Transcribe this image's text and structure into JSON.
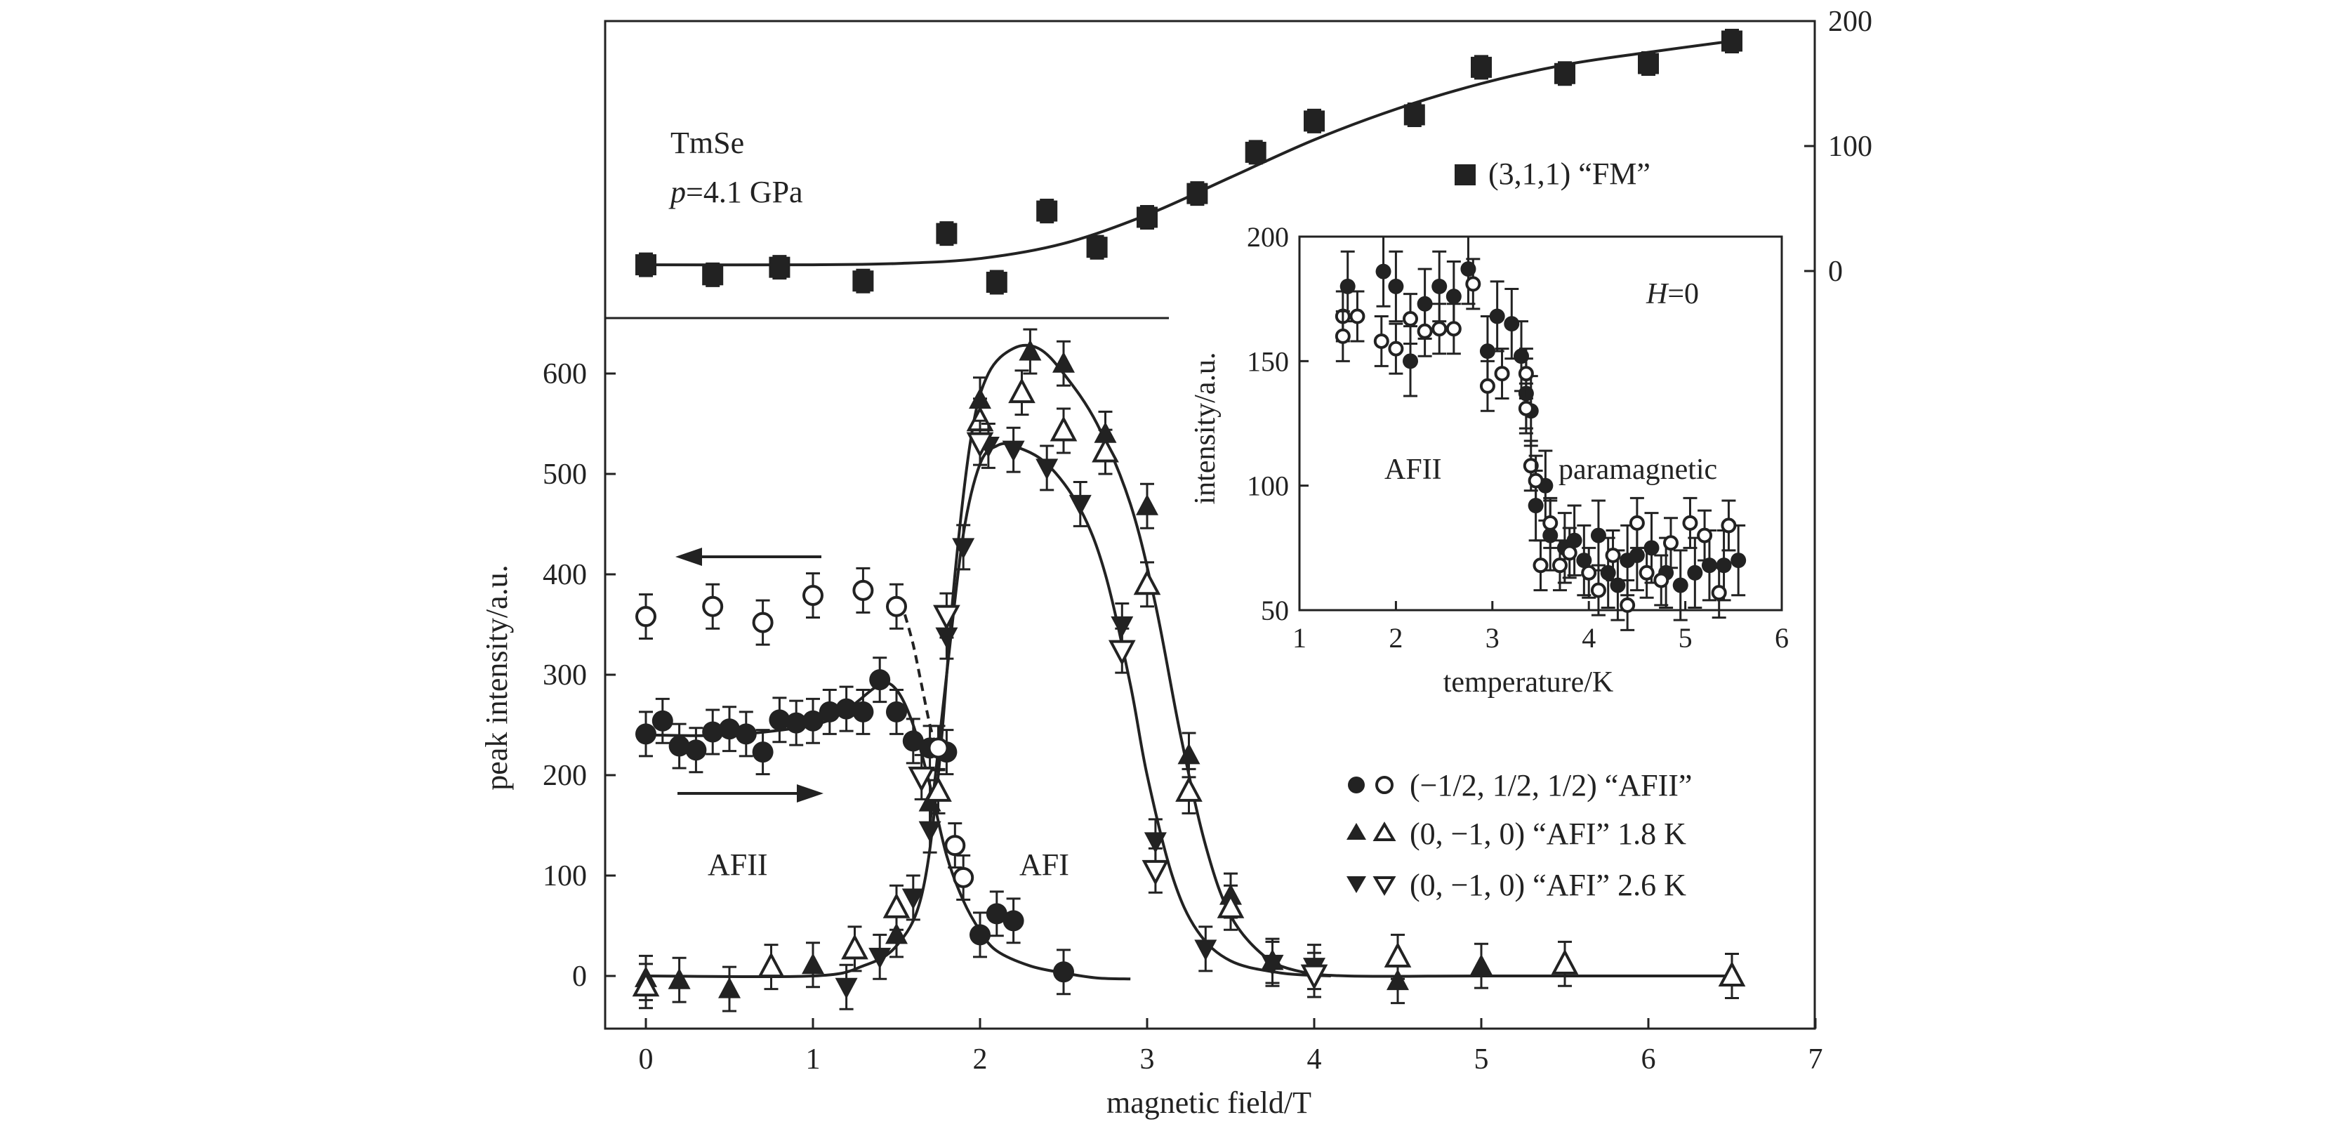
{
  "chart_data": {
    "type": "scatter",
    "main": {
      "xlabel": "magnetic field/T",
      "ylabel": "peak intensity/a.u.",
      "xlim": [
        0,
        7
      ],
      "x_ticks": [
        "0",
        "1",
        "2",
        "3",
        "4",
        "5",
        "6",
        "7"
      ],
      "ylim_left": [
        0,
        600
      ],
      "y_ticks_left": [
        "0",
        "100",
        "200",
        "300",
        "400",
        "500",
        "600"
      ],
      "ylim_right": [
        0,
        200
      ],
      "y_ticks_right": [
        "0",
        "100",
        "200"
      ],
      "annotations": {
        "sample": "TmSe",
        "pressure_p": "p",
        "pressure_rest": "=4.1 GPa",
        "phase_afii": "AFII",
        "phase_afi": "AFI"
      },
      "legend": {
        "fm": "(3,1,1) “FM”",
        "afii": "(−1/2, 1/2, 1/2) “AFII”",
        "afi_18": "(0, −1, 0) “AFI” 1.8 K",
        "afi_26": "(0, −1, 0) “AFI” 2.6 K"
      },
      "series": [
        {
          "name": "(3,1,1) FM",
          "axis": "right",
          "marker": "square",
          "filled": true,
          "error": 9,
          "x": [
            0,
            0.4,
            0.8,
            1.3,
            1.8,
            2.1,
            2.4,
            2.7,
            3.0,
            3.3,
            3.65,
            4.0,
            4.6,
            5.0,
            5.5,
            6.0,
            6.5
          ],
          "y": [
            5,
            -3,
            3,
            -8,
            30,
            -9,
            48,
            19,
            43,
            62,
            95,
            120,
            125,
            163,
            158,
            166,
            184
          ]
        },
        {
          "name": "AFII increasing field",
          "axis": "left",
          "marker": "circle",
          "filled": true,
          "error": 22,
          "x": [
            0,
            0.1,
            0.2,
            0.3,
            0.4,
            0.5,
            0.6,
            0.7,
            0.8,
            0.9,
            1.0,
            1.1,
            1.2,
            1.3,
            1.4,
            1.5,
            1.6,
            1.7,
            1.8,
            2.0,
            2.1,
            2.2,
            2.5
          ],
          "y": [
            241,
            254,
            229,
            225,
            243,
            246,
            241,
            223,
            255,
            252,
            254,
            263,
            266,
            263,
            295,
            263,
            234,
            227,
            223,
            41,
            62,
            55,
            4
          ]
        },
        {
          "name": "AFII decreasing field",
          "axis": "left",
          "marker": "circle",
          "filled": false,
          "error": 22,
          "x": [
            0,
            0.4,
            0.7,
            1.0,
            1.3,
            1.5,
            1.75,
            1.85,
            1.9
          ],
          "y": [
            358,
            368,
            352,
            379,
            384,
            368,
            227,
            130,
            98
          ]
        },
        {
          "name": "AFI 1.8 K filled",
          "axis": "left",
          "marker": "triangle-up",
          "filled": true,
          "error": 22,
          "x": [
            0,
            0.2,
            0.5,
            1.0,
            1.5,
            1.7,
            2.0,
            2.3,
            2.5,
            2.75,
            3.0,
            3.25,
            3.5,
            3.75,
            4.5,
            5.0
          ],
          "y": [
            -2,
            -4,
            -13,
            11,
            41,
            173,
            574,
            622,
            610,
            540,
            468,
            220,
            80,
            15,
            -5,
            10
          ]
        },
        {
          "name": "AFI 1.8 K open",
          "axis": "left",
          "marker": "triangle-up",
          "filled": false,
          "error": 22,
          "x": [
            0,
            0.75,
            1.25,
            1.5,
            1.75,
            2.0,
            2.25,
            2.5,
            2.75,
            3.0,
            3.25,
            3.5,
            4.5,
            5.5,
            6.5
          ],
          "y": [
            -10,
            9,
            27,
            68,
            184,
            553,
            581,
            543,
            522,
            390,
            184,
            68,
            19,
            12,
            0
          ]
        },
        {
          "name": "AFI 2.6 K filled",
          "axis": "left",
          "marker": "triangle-down",
          "filled": true,
          "error": 22,
          "x": [
            1.2,
            1.4,
            1.6,
            1.7,
            1.8,
            1.9,
            2.05,
            2.2,
            2.4,
            2.6,
            2.85,
            3.05,
            3.35,
            3.75,
            4.0
          ],
          "y": [
            -11,
            19,
            78,
            145,
            338,
            427,
            528,
            524,
            506,
            470,
            349,
            134,
            27,
            12,
            9
          ]
        },
        {
          "name": "AFI 2.6 K open",
          "axis": "left",
          "marker": "triangle-down",
          "filled": false,
          "error": 22,
          "x": [
            1.65,
            1.8,
            2.0,
            2.85,
            3.05,
            4.0
          ],
          "y": [
            198,
            359,
            531,
            324,
            105,
            1
          ]
        }
      ],
      "fit_curves": [
        {
          "name": "FM fit",
          "axis": "right",
          "dashed": false,
          "x": [
            0,
            1,
            1.5,
            2,
            2.5,
            3,
            3.5,
            4,
            4.5,
            5,
            5.5,
            6,
            6.5
          ],
          "y": [
            5,
            5,
            6,
            10,
            22,
            45,
            75,
            105,
            130,
            150,
            165,
            175,
            184
          ]
        },
        {
          "name": "AFII fit",
          "axis": "left",
          "dashed": false,
          "x": [
            0,
            0.5,
            1.0,
            1.2,
            1.4,
            1.5,
            1.6,
            1.7,
            1.8,
            1.9,
            2.0,
            2.1,
            2.3,
            2.5,
            2.7,
            2.9
          ],
          "y": [
            240,
            240,
            250,
            265,
            290,
            285,
            250,
            190,
            120,
            75,
            45,
            25,
            10,
            3,
            -2,
            -3
          ]
        },
        {
          "name": "AFII decreasing fit",
          "axis": "left",
          "dashed": true,
          "x": [
            1.55,
            1.6,
            1.65,
            1.7,
            1.75
          ],
          "y": [
            360,
            330,
            290,
            250,
            220
          ]
        },
        {
          "name": "AFI 1.8 K fit",
          "axis": "left",
          "dashed": false,
          "x": [
            0,
            1.0,
            1.3,
            1.5,
            1.65,
            1.75,
            1.85,
            1.95,
            2.05,
            2.2,
            2.35,
            2.5,
            2.7,
            2.9,
            3.05,
            3.2,
            3.35,
            3.5,
            3.7,
            3.9,
            4.2,
            5,
            6.5
          ],
          "y": [
            0,
            0,
            10,
            30,
            80,
            200,
            400,
            540,
            600,
            625,
            625,
            600,
            550,
            470,
            370,
            240,
            130,
            60,
            20,
            5,
            0,
            0,
            0
          ]
        },
        {
          "name": "AFI 2.6 K fit",
          "axis": "left",
          "dashed": false,
          "x": [
            1.7,
            1.8,
            1.9,
            2.0,
            2.1,
            2.2,
            2.4,
            2.6,
            2.75,
            2.9,
            3.0,
            3.15,
            3.3,
            3.5,
            3.8,
            4.1
          ],
          "y": [
            150,
            300,
            440,
            510,
            528,
            528,
            510,
            465,
            400,
            290,
            200,
            100,
            45,
            15,
            3,
            0
          ]
        }
      ]
    },
    "inset": {
      "xlabel": "temperature/K",
      "ylabel": "intensity/a.u.",
      "xlim": [
        1,
        6
      ],
      "x_ticks": [
        "1",
        "2",
        "3",
        "4",
        "5",
        "6"
      ],
      "ylim": [
        50,
        200
      ],
      "y_ticks": [
        "50",
        "100",
        "150",
        "200"
      ],
      "annotations": {
        "field_h": "H",
        "field_rest": "=0",
        "phase_afii": "AFII",
        "phase_para": "paramagnetic"
      },
      "series": [
        {
          "name": "filled",
          "marker": "circle",
          "filled": true,
          "error": 14,
          "x": [
            1.5,
            1.87,
            2.0,
            2.15,
            2.3,
            2.45,
            2.6,
            2.75,
            2.95,
            3.05,
            3.2,
            3.3,
            3.35,
            3.4,
            3.45,
            3.55,
            3.6,
            3.75,
            3.85,
            3.95,
            4.1,
            4.2,
            4.3,
            4.4,
            4.5,
            4.65,
            4.8,
            4.95,
            5.1,
            5.25,
            5.4,
            5.55
          ],
          "y": [
            180,
            186,
            180,
            150,
            173,
            180,
            176,
            187,
            154,
            168,
            165,
            152,
            137,
            130,
            92,
            100,
            80,
            75,
            78,
            70,
            80,
            65,
            60,
            70,
            72,
            75,
            65,
            60,
            65,
            68,
            68,
            70
          ]
        },
        {
          "name": "open",
          "marker": "circle",
          "filled": false,
          "error": 10,
          "x": [
            1.45,
            1.45,
            1.6,
            1.85,
            2.0,
            2.15,
            2.3,
            2.45,
            2.6,
            2.8,
            2.95,
            3.1,
            3.35,
            3.35,
            3.4,
            3.45,
            3.5,
            3.6,
            3.7,
            3.8,
            4.0,
            4.1,
            4.25,
            4.4,
            4.5,
            4.6,
            4.75,
            4.85,
            5.05,
            5.2,
            5.35,
            5.45
          ],
          "y": [
            168,
            160,
            168,
            158,
            155,
            167,
            162,
            163,
            163,
            181,
            140,
            145,
            145,
            131,
            108,
            102,
            68,
            85,
            68,
            73,
            65,
            58,
            72,
            52,
            85,
            65,
            62,
            77,
            85,
            80,
            57,
            84
          ]
        }
      ]
    }
  }
}
